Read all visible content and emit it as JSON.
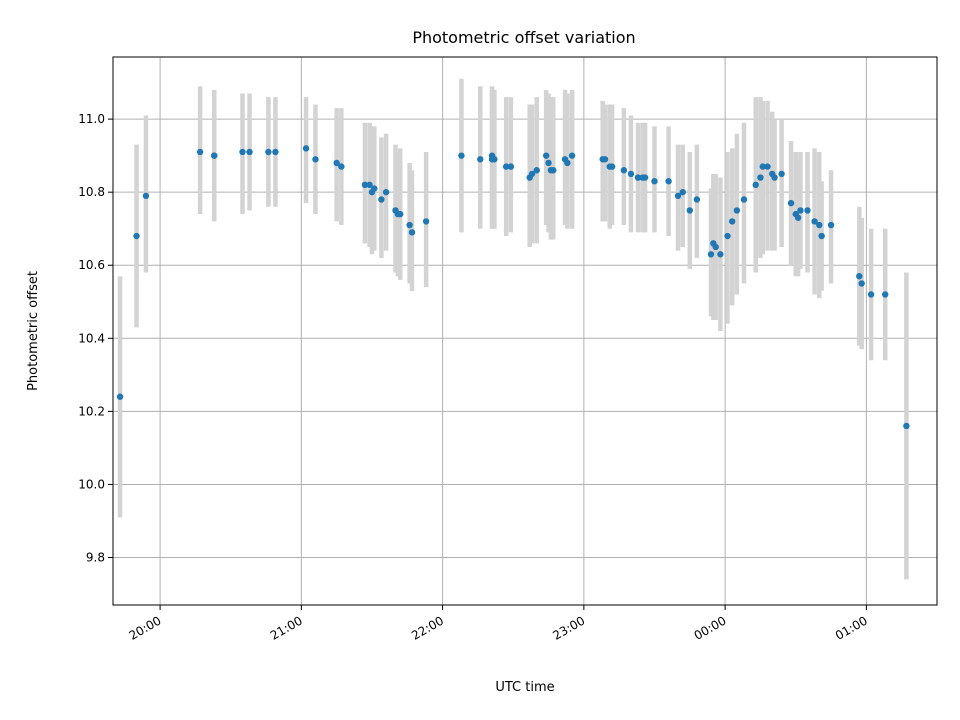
{
  "chart_data": {
    "type": "scatter",
    "title": "Photometric offset variation",
    "xlabel": "UTC time",
    "ylabel": "Photometric offset",
    "grid": true,
    "xlim": [
      "19:40",
      "01:30"
    ],
    "ylim": [
      9.67,
      11.17
    ],
    "x_ticks": [
      "20:00",
      "21:00",
      "22:00",
      "23:00",
      "00:00",
      "01:00"
    ],
    "y_ticks": [
      "9.8",
      "10.0",
      "10.2",
      "10.4",
      "10.6",
      "10.8",
      "11.0"
    ],
    "colors": {
      "points": "#1f77b4",
      "error_bars": "#d3d3d3",
      "grid": "#b0b0b0"
    },
    "series": [
      {
        "x": [
          "19:43",
          "19:50",
          "19:54",
          "20:17",
          "20:23",
          "20:23",
          "20:35",
          "20:38",
          "20:46",
          "20:49",
          "21:02",
          "21:06",
          "21:15",
          "21:17",
          "21:27",
          "21:29",
          "21:30",
          "21:31",
          "21:34",
          "21:36",
          "21:40",
          "21:41",
          "21:42",
          "21:46",
          "21:47",
          "21:53",
          "22:08",
          "22:16",
          "22:21",
          "22:21",
          "22:22",
          "22:27",
          "22:29",
          "22:37",
          "22:38",
          "22:40",
          "22:44",
          "22:45",
          "22:46",
          "22:47",
          "22:52",
          "22:53",
          "22:55",
          "23:08",
          "23:09",
          "23:11",
          "23:12",
          "23:17",
          "23:20",
          "23:23",
          "23:25",
          "23:26",
          "23:30",
          "23:36",
          "23:40",
          "23:42",
          "23:45",
          "23:48",
          "23:54",
          "23:55",
          "23:56",
          "23:58",
          "00:01",
          "00:03",
          "00:05",
          "00:08",
          "00:13",
          "00:15",
          "00:16",
          "00:18",
          "00:20",
          "00:21",
          "00:24",
          "00:28",
          "00:30",
          "00:31",
          "00:32",
          "00:35",
          "00:38",
          "00:40",
          "00:41",
          "00:45",
          "00:57",
          "00:58",
          "01:02",
          "01:08",
          "01:17"
        ],
        "y": [
          10.24,
          10.68,
          10.79,
          10.91,
          10.9,
          10.9,
          10.91,
          10.91,
          10.91,
          10.91,
          10.92,
          10.89,
          10.88,
          10.87,
          10.82,
          10.82,
          10.8,
          10.81,
          10.78,
          10.8,
          10.75,
          10.74,
          10.74,
          10.71,
          10.69,
          10.72,
          10.9,
          10.89,
          10.9,
          10.89,
          10.89,
          10.87,
          10.87,
          10.84,
          10.85,
          10.86,
          10.9,
          10.88,
          10.86,
          10.86,
          10.89,
          10.88,
          10.9,
          10.89,
          10.89,
          10.87,
          10.87,
          10.86,
          10.85,
          10.84,
          10.84,
          10.84,
          10.83,
          10.83,
          10.79,
          10.8,
          10.75,
          10.78,
          10.63,
          10.66,
          10.65,
          10.63,
          10.68,
          10.72,
          10.75,
          10.78,
          10.82,
          10.84,
          10.87,
          10.87,
          10.85,
          10.84,
          10.85,
          10.77,
          10.74,
          10.73,
          10.75,
          10.75,
          10.72,
          10.71,
          10.68,
          10.71,
          10.57,
          10.55,
          10.52,
          10.52,
          10.16
        ],
        "err_low": [
          9.91,
          10.43,
          10.58,
          10.74,
          10.72,
          10.72,
          10.74,
          10.75,
          10.76,
          10.76,
          10.77,
          10.74,
          10.72,
          10.71,
          10.66,
          10.65,
          10.63,
          10.64,
          10.62,
          10.64,
          10.58,
          10.57,
          10.56,
          10.55,
          10.53,
          10.54,
          10.69,
          10.7,
          10.71,
          10.7,
          10.7,
          10.68,
          10.69,
          10.65,
          10.66,
          10.66,
          10.71,
          10.69,
          10.67,
          10.67,
          10.71,
          10.7,
          10.7,
          10.72,
          10.72,
          10.7,
          10.71,
          10.71,
          10.69,
          10.69,
          10.69,
          10.69,
          10.69,
          10.68,
          10.64,
          10.65,
          10.59,
          10.62,
          10.46,
          10.45,
          10.45,
          10.42,
          10.44,
          10.49,
          10.52,
          10.55,
          10.58,
          10.62,
          10.63,
          10.64,
          10.64,
          10.64,
          10.65,
          10.6,
          10.57,
          10.57,
          10.59,
          10.58,
          10.52,
          10.51,
          10.53,
          10.55,
          10.38,
          10.37,
          10.34,
          10.34,
          9.74
        ],
        "err_high": [
          10.57,
          10.93,
          11.01,
          11.09,
          11.08,
          11.08,
          11.07,
          11.07,
          11.06,
          11.06,
          11.06,
          11.04,
          11.03,
          11.03,
          10.99,
          10.99,
          10.98,
          10.98,
          10.95,
          10.96,
          10.93,
          10.91,
          10.92,
          10.88,
          10.86,
          10.91,
          11.11,
          11.09,
          11.09,
          11.08,
          11.08,
          11.06,
          11.06,
          11.04,
          11.04,
          11.06,
          11.08,
          11.07,
          11.06,
          11.06,
          11.08,
          11.07,
          11.08,
          11.05,
          11.04,
          11.04,
          11.04,
          11.03,
          11.01,
          10.99,
          10.99,
          10.99,
          10.98,
          10.98,
          10.93,
          10.93,
          10.91,
          10.93,
          10.81,
          10.85,
          10.85,
          10.84,
          10.91,
          10.92,
          10.96,
          10.99,
          11.06,
          11.06,
          11.05,
          11.05,
          11.02,
          11.0,
          11.0,
          10.94,
          10.91,
          10.89,
          10.91,
          10.91,
          10.92,
          10.91,
          10.83,
          10.86,
          10.76,
          10.73,
          10.7,
          10.7,
          10.58
        ]
      }
    ]
  }
}
